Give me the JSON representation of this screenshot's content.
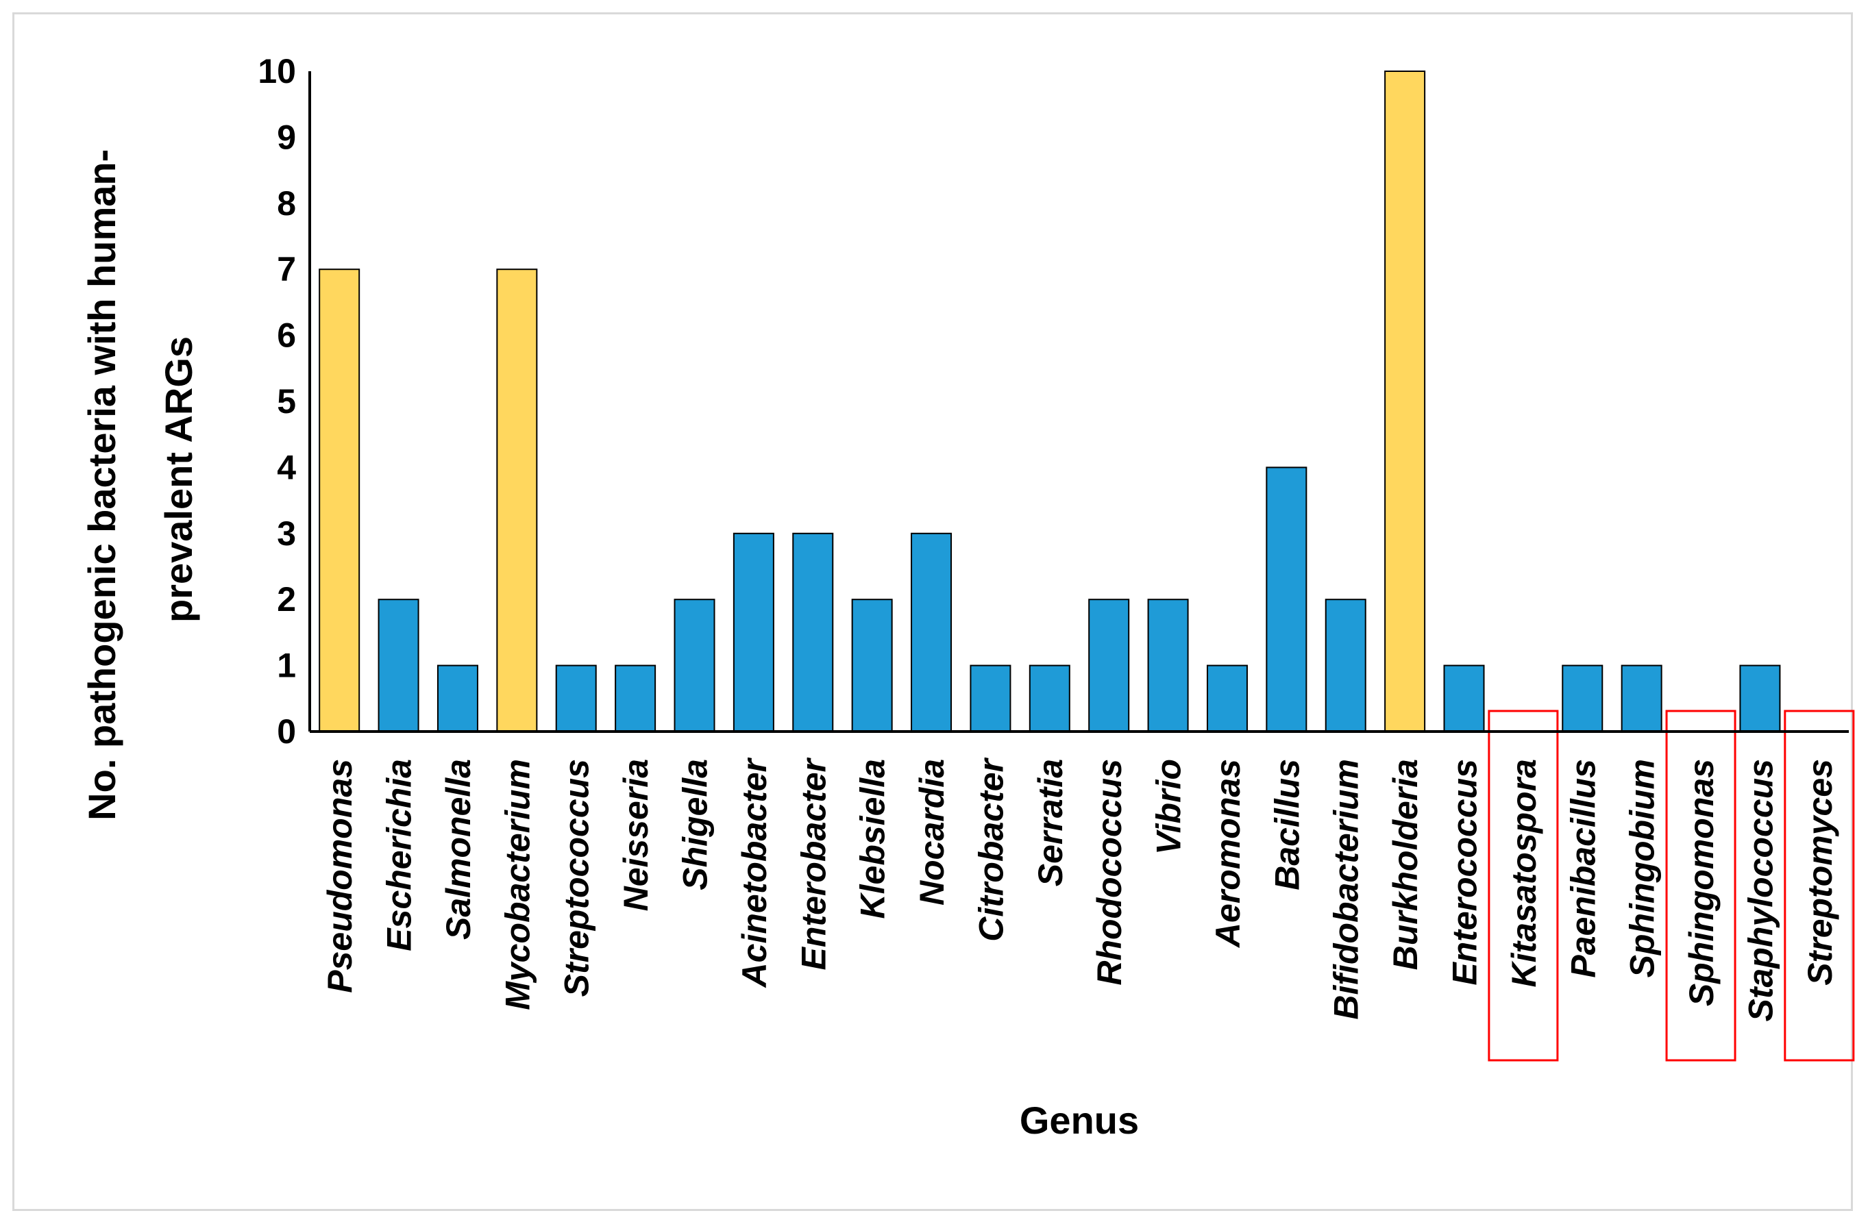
{
  "chart_data": {
    "type": "bar",
    "title": "",
    "xlabel": "Genus",
    "ylabel_lines": [
      "No. pathogenic bacteria with human-",
      "prevalent ARGs"
    ],
    "ylim": [
      0,
      10
    ],
    "yticks": [
      0,
      1,
      2,
      3,
      4,
      5,
      6,
      7,
      8,
      9,
      10
    ],
    "grid": false,
    "categories": [
      "Pseudomonas",
      "Escherichia",
      "Salmonella",
      "Mycobacterium",
      "Streptococcus",
      "Neisseria",
      "Shigella",
      "Acinetobacter",
      "Enterobacter",
      "Klebsiella",
      "Nocardia",
      "Citrobacter",
      "Serratia",
      "Rhodococcus",
      "Vibrio",
      "Aeromonas",
      "Bacillus",
      "Bifidobacterium",
      "Burkholderia",
      "Enterococcus",
      "Kitasatospora",
      "Paenibacillus",
      "Sphingobium",
      "Sphingomonas",
      "Staphylococcus",
      "Streptomyces"
    ],
    "values": [
      7,
      2,
      1,
      7,
      1,
      1,
      2,
      3,
      3,
      2,
      3,
      1,
      1,
      2,
      2,
      1,
      4,
      2,
      10,
      1,
      0,
      1,
      1,
      0,
      1,
      0
    ],
    "highlighted_yellow": [
      "Pseudomonas",
      "Mycobacterium",
      "Burkholderia"
    ],
    "boxed_in_red": [
      "Kitasatospora",
      "Sphingomonas",
      "Streptomyces"
    ],
    "colors": {
      "bar_default": "#1f9bd7",
      "bar_highlight": "#ffd75e",
      "box_outline": "#ff0000",
      "axis": "#000000"
    }
  }
}
